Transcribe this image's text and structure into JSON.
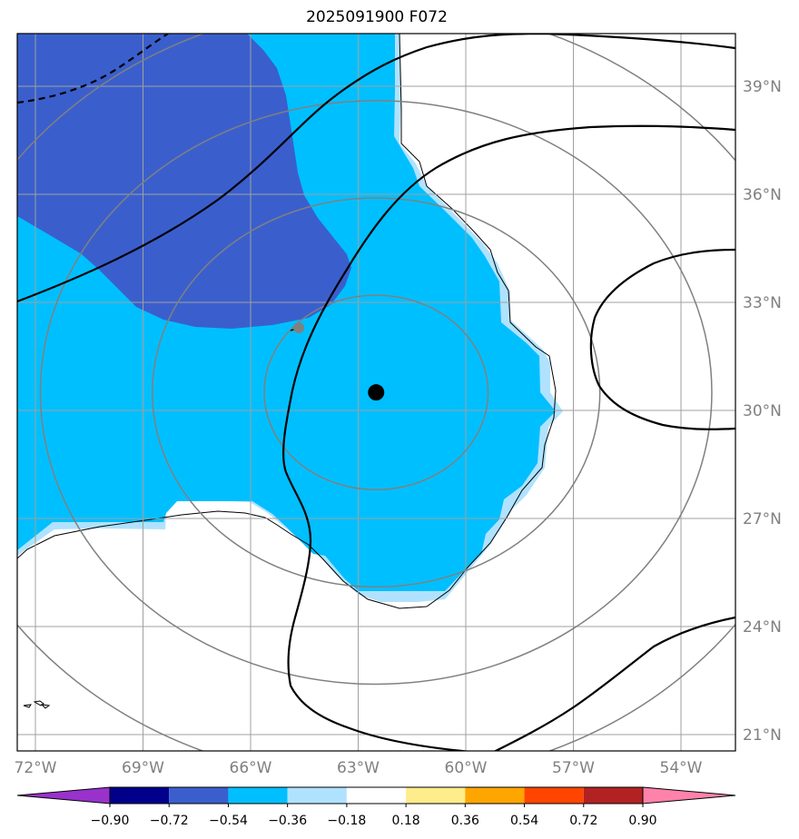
{
  "title": "2025091900 F072",
  "map": {
    "lat_ticks": [
      {
        "label": "21°N",
        "lat": 21
      },
      {
        "label": "24°N",
        "lat": 24
      },
      {
        "label": "27°N",
        "lat": 27
      },
      {
        "label": "30°N",
        "lat": 30
      },
      {
        "label": "33°N",
        "lat": 33
      },
      {
        "label": "36°N",
        "lat": 36
      },
      {
        "label": "39°N",
        "lat": 39
      }
    ],
    "lon_ticks": [
      {
        "label": "72°W",
        "lon": -72
      },
      {
        "label": "69°W",
        "lon": -69
      },
      {
        "label": "66°W",
        "lon": -66
      },
      {
        "label": "63°W",
        "lon": -63
      },
      {
        "label": "60°W",
        "lon": -60
      },
      {
        "label": "57°W",
        "lon": -57
      },
      {
        "label": "54°W",
        "lon": -54
      }
    ],
    "center_marker": {
      "lon": -62.5,
      "lat": 30.5
    },
    "range_rings_radii_deg": [
      3,
      6,
      9,
      12
    ],
    "colors": {
      "fill_dark": "#3a5fcd",
      "fill_mid": "#00bfff",
      "fill_light": "#b0e2ff",
      "ring": "#808080",
      "contour": "#000000"
    }
  },
  "colorbar": {
    "levels": [
      "−0.90",
      "−0.72",
      "−0.54",
      "−0.36",
      "−0.18",
      "0.18",
      "0.36",
      "0.54",
      "0.72",
      "0.90"
    ],
    "colors": [
      "#9932cc",
      "#00008b",
      "#3a5fcd",
      "#00bfff",
      "#b0e2ff",
      "#ffffff",
      "#ffec8b",
      "#ffa500",
      "#ff4500",
      "#b22222",
      "#ff82ab"
    ]
  }
}
